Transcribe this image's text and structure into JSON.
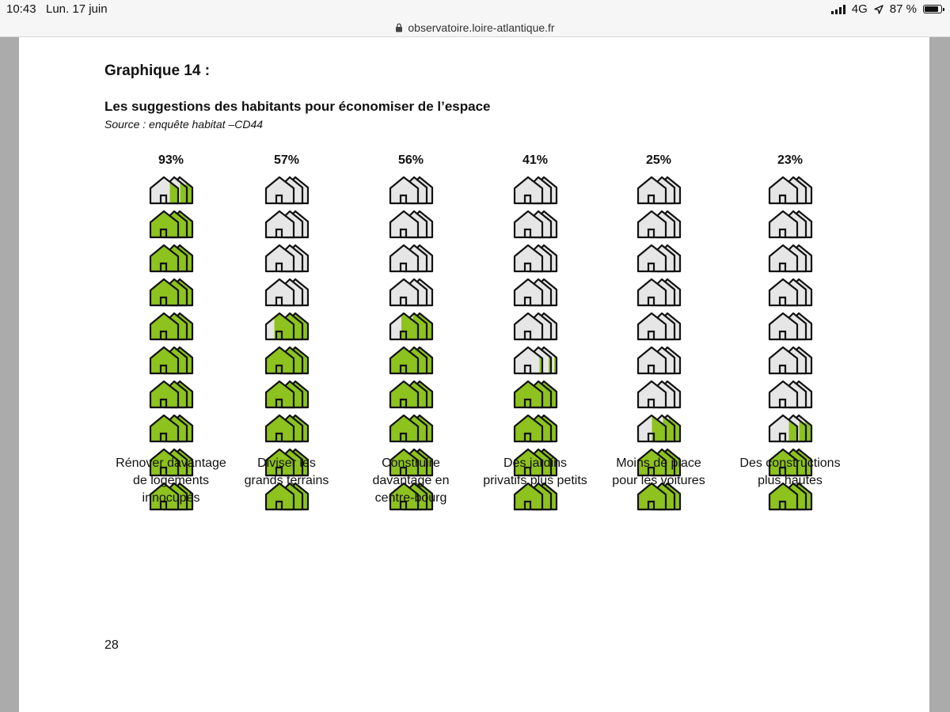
{
  "status_bar": {
    "time": "10:43",
    "date": "Lun. 17 juin",
    "network": "4G",
    "battery": "87 %",
    "battery_level": 0.87,
    "location_icon": "location-arrow-icon"
  },
  "browser": {
    "url": "observatoire.loire-atlantique.fr",
    "lock_icon": "lock-icon"
  },
  "document": {
    "title": "Graphique 14 :",
    "subtitle": "Les suggestions des habitants pour économiser de l’espace",
    "source": "Source : enquête habitat –CD44",
    "page_number": "28"
  },
  "chart_data": {
    "type": "pictogram",
    "title": "Les suggestions des habitants pour économiser de l’espace",
    "icon": "house-icon",
    "icons_per_column": 10,
    "unit": "%",
    "colors": {
      "filled": "#8dc21f",
      "empty": "#e6e6e6",
      "outline": "#111111"
    },
    "categories": [
      [
        "Rénover davantage",
        "de logements",
        "innocupés"
      ],
      [
        "Diviser les",
        "grands terrains"
      ],
      [
        "Construire",
        "davantage en",
        "centre-bourg"
      ],
      [
        "Des jardins",
        "privatifs plus petits"
      ],
      [
        "Moins de place",
        "pour les voitures"
      ],
      [
        "Des constructions",
        "plus hautes"
      ]
    ],
    "values": [
      93,
      57,
      56,
      41,
      25,
      23
    ],
    "labels": [
      "93%",
      "57%",
      "56%",
      "41%",
      "25%",
      "23%"
    ]
  }
}
